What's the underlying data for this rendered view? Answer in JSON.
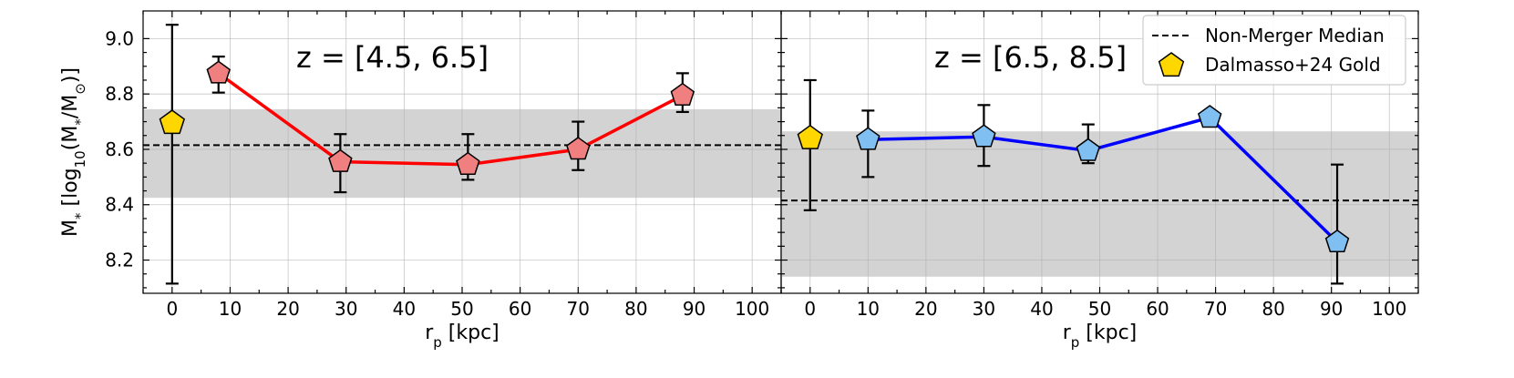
{
  "chart_data": [
    {
      "type": "line",
      "panel_label": "z = [4.5, 6.5]",
      "xlabel": "r_p [kpc]",
      "ylabel": "M_* [log10(M*/M⊙)]",
      "xlim": [
        -5,
        105
      ],
      "ylim": [
        8.08,
        9.1
      ],
      "xticks": [
        0,
        10,
        20,
        30,
        40,
        50,
        60,
        70,
        80,
        90,
        100
      ],
      "yticks": [
        8.2,
        8.4,
        8.6,
        8.8,
        9.0
      ],
      "grid": true,
      "median_band": {
        "median": 8.615,
        "low": 8.425,
        "high": 8.745
      },
      "series": [
        {
          "color": "#ff0000",
          "marker_color": "#f08080",
          "marker": "pentagon",
          "points": [
            {
              "x": 8,
              "y": 8.875,
              "err_low": 8.805,
              "err_high": 8.935
            },
            {
              "x": 29,
              "y": 8.555,
              "err_low": 8.445,
              "err_high": 8.655
            },
            {
              "x": 51,
              "y": 8.545,
              "err_low": 8.49,
              "err_high": 8.655
            },
            {
              "x": 70,
              "y": 8.6,
              "err_low": 8.525,
              "err_high": 8.7
            },
            {
              "x": 88,
              "y": 8.795,
              "err_low": 8.735,
              "err_high": 8.875
            }
          ]
        }
      ],
      "reference_point": {
        "x": 0,
        "y": 8.695,
        "err_low": 8.115,
        "err_high": 9.05,
        "color": "#ffd700",
        "marker": "pentagon"
      }
    },
    {
      "type": "line",
      "panel_label": "z = [6.5, 8.5]",
      "xlabel": "r_p [kpc]",
      "xlim": [
        -5,
        105
      ],
      "ylim": [
        8.08,
        9.1
      ],
      "xticks": [
        0,
        10,
        20,
        30,
        40,
        50,
        60,
        70,
        80,
        90,
        100
      ],
      "grid": true,
      "median_band": {
        "median": 8.415,
        "low": 8.14,
        "high": 8.665
      },
      "series": [
        {
          "color": "#0000ff",
          "marker_color": "#80bff2",
          "marker": "pentagon",
          "points": [
            {
              "x": 10,
              "y": 8.635,
              "err_low": 8.5,
              "err_high": 8.74
            },
            {
              "x": 30,
              "y": 8.645,
              "err_low": 8.54,
              "err_high": 8.76
            },
            {
              "x": 48,
              "y": 8.595,
              "err_low": 8.55,
              "err_high": 8.69
            },
            {
              "x": 69,
              "y": 8.715,
              "err_low": 8.715,
              "err_high": 8.715
            },
            {
              "x": 91,
              "y": 8.265,
              "err_low": 8.115,
              "err_high": 8.545
            }
          ]
        }
      ],
      "reference_point": {
        "x": 0,
        "y": 8.64,
        "err_low": 8.38,
        "err_high": 8.85,
        "color": "#ffd700",
        "marker": "pentagon"
      },
      "legend": {
        "position": "top-right",
        "entries": [
          {
            "label": "Non-Merger Median",
            "style": "dashed-line"
          },
          {
            "label": "Dalmasso+24 Gold",
            "style": "gold-pentagon"
          }
        ]
      }
    }
  ]
}
